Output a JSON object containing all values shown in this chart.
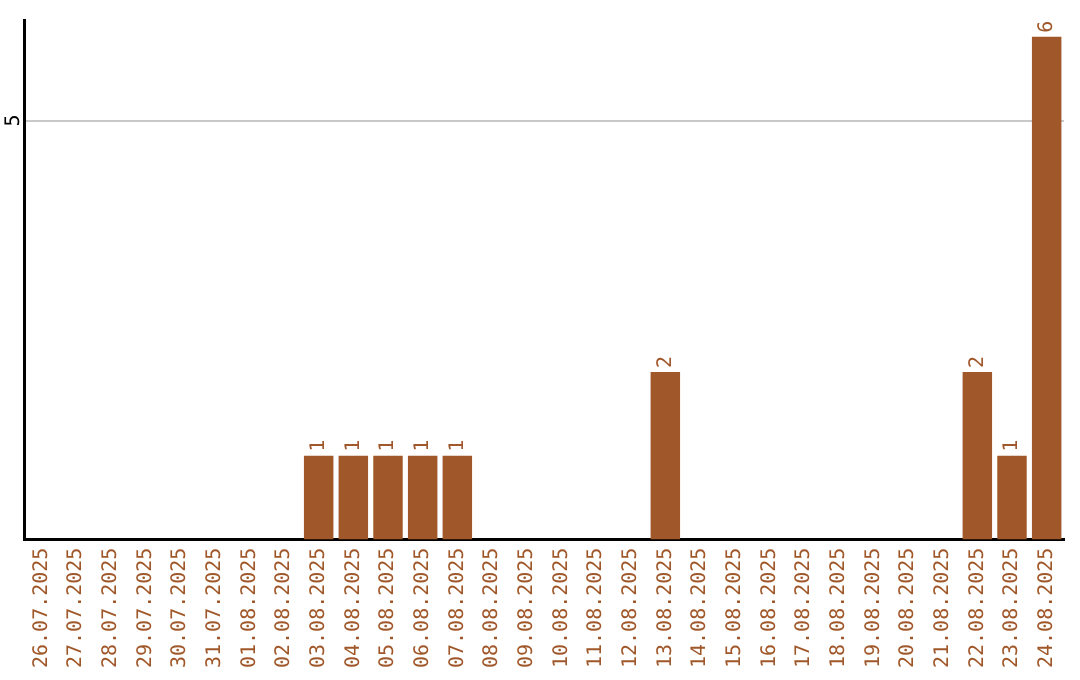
{
  "chart_data": {
    "type": "bar",
    "categories": [
      "26.07.2025",
      "27.07.2025",
      "28.07.2025",
      "29.07.2025",
      "30.07.2025",
      "31.07.2025",
      "01.08.2025",
      "02.08.2025",
      "03.08.2025",
      "04.08.2025",
      "05.08.2025",
      "06.08.2025",
      "07.08.2025",
      "08.08.2025",
      "09.08.2025",
      "10.08.2025",
      "11.08.2025",
      "12.08.2025",
      "13.08.2025",
      "14.08.2025",
      "15.08.2025",
      "16.08.2025",
      "17.08.2025",
      "18.08.2025",
      "19.08.2025",
      "20.08.2025",
      "21.08.2025",
      "22.08.2025",
      "23.08.2025",
      "24.08.2025"
    ],
    "values": [
      0,
      0,
      0,
      0,
      0,
      0,
      0,
      0,
      1,
      1,
      1,
      1,
      1,
      0,
      0,
      0,
      0,
      0,
      2,
      0,
      0,
      0,
      0,
      0,
      0,
      0,
      0,
      2,
      1,
      6
    ],
    "value_labels": [
      null,
      null,
      null,
      null,
      null,
      null,
      null,
      null,
      "1",
      "1",
      "1",
      "1",
      "1",
      null,
      null,
      null,
      null,
      null,
      "2",
      null,
      null,
      null,
      null,
      null,
      null,
      null,
      null,
      "2",
      "1",
      "6"
    ],
    "color": "#a0582a",
    "ylim": [
      0,
      6.2
    ],
    "yticks": [
      5
    ],
    "grid": "y",
    "legend": false
  }
}
